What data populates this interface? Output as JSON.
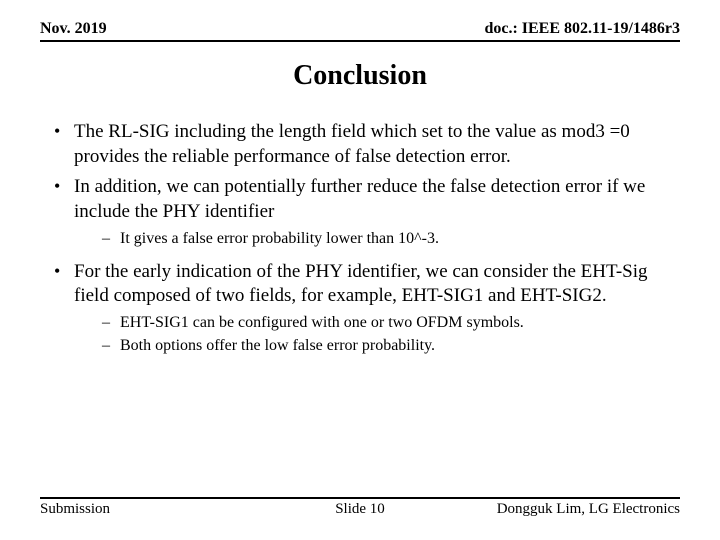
{
  "header": {
    "date": "Nov. 2019",
    "doc": "doc.: IEEE 802.11-19/1486r3"
  },
  "title": "Conclusion",
  "bullets": [
    {
      "text": "The RL-SIG including the length field which set to the value as mod3 =0 provides the reliable performance of false detection error.",
      "sub": []
    },
    {
      "text": "In addition, we can potentially further reduce the false detection error if we include the PHY identifier",
      "sub": [
        "It gives a false error probability lower than 10^-3."
      ]
    },
    {
      "text": "For the early indication of the PHY identifier, we can consider the EHT-Sig field composed of two fields, for example, EHT-SIG1 and EHT-SIG2.",
      "sub": [
        "EHT-SIG1 can be configured with one or two OFDM symbols.",
        "Both options offer the low false error probability."
      ]
    }
  ],
  "footer": {
    "left": "Submission",
    "center": "Slide 10",
    "right": "Dongguk Lim, LG Electronics"
  }
}
